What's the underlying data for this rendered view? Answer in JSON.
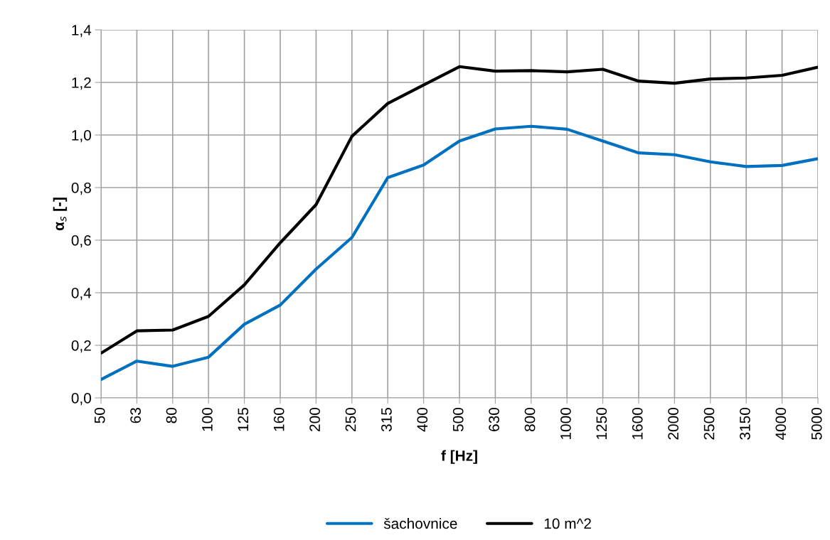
{
  "chart_data": {
    "type": "line",
    "xlabel": "f [Hz]",
    "ylabel": "α$_{s}$ [-]",
    "categories": [
      "50",
      "63",
      "80",
      "100",
      "125",
      "160",
      "200",
      "250",
      "315",
      "400",
      "500",
      "630",
      "800",
      "1000",
      "1250",
      "1600",
      "2000",
      "2500",
      "3150",
      "4000",
      "5000"
    ],
    "series": [
      {
        "name": "šachovnice",
        "color": "#0070c0",
        "values": [
          0.07,
          0.14,
          0.12,
          0.155,
          0.28,
          0.353,
          0.49,
          0.61,
          0.838,
          0.886,
          0.977,
          1.023,
          1.033,
          1.022,
          0.977,
          0.932,
          0.925,
          0.898,
          0.88,
          0.884,
          0.91
        ]
      },
      {
        "name": "10 m^2",
        "color": "#000000",
        "values": [
          0.17,
          0.255,
          0.258,
          0.31,
          0.43,
          0.59,
          0.735,
          0.995,
          1.12,
          1.19,
          1.26,
          1.243,
          1.245,
          1.24,
          1.25,
          1.205,
          1.197,
          1.213,
          1.217,
          1.227,
          1.258
        ]
      }
    ],
    "ylim": [
      0,
      1.4
    ],
    "yticks": [
      {
        "value": 0,
        "label": "0,0"
      },
      {
        "value": 0.2,
        "label": "0,2"
      },
      {
        "value": 0.4,
        "label": "0,4"
      },
      {
        "value": 0.6,
        "label": "0,6"
      },
      {
        "value": 0.8,
        "label": "0,8"
      },
      {
        "value": 1.0,
        "label": "1,0"
      },
      {
        "value": 1.2,
        "label": "1,2"
      },
      {
        "value": 1.4,
        "label": "1,4"
      }
    ],
    "grid": true,
    "legend": "bottom",
    "marker": "none",
    "line_style": "solid"
  }
}
